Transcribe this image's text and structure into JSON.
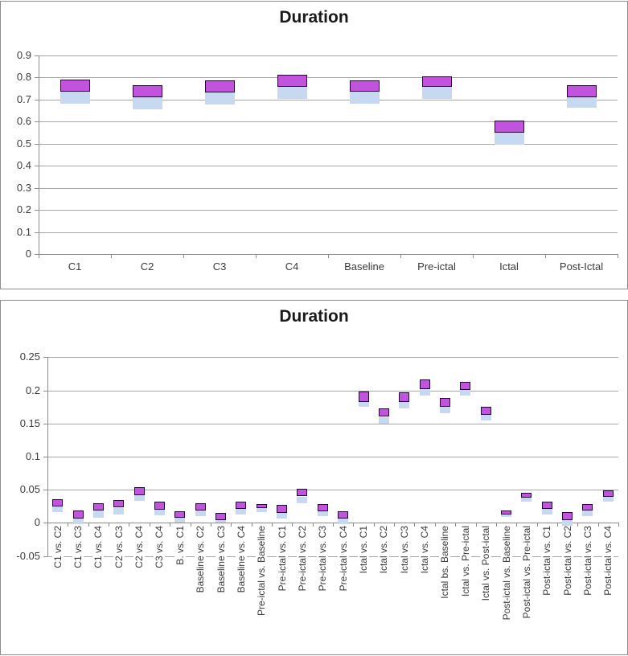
{
  "chart_data": [
    {
      "type": "bar",
      "subtype": "stacked-floating-range",
      "title": "Duration",
      "xlabel": "",
      "ylabel": "",
      "ylim": [
        0,
        0.9
      ],
      "yticks": [
        "0.9",
        "0.8",
        "0.7",
        "0.6",
        "0.5",
        "0.4",
        "0.3",
        "0.2",
        "0.1",
        "0"
      ],
      "grid": true,
      "legend": "none",
      "categories": [
        "C1",
        "C2",
        "C3",
        "C4",
        "Baseline",
        "Pre-ictal",
        "Ictal",
        "Post-Ictal"
      ],
      "series": [
        {
          "name": "lower-band",
          "color": "#C6D9F1",
          "ranges": [
            [
              0.68,
              0.735
            ],
            [
              0.655,
              0.71
            ],
            [
              0.675,
              0.73
            ],
            [
              0.7,
              0.755
            ],
            [
              0.68,
              0.735
            ],
            [
              0.7,
              0.755
            ],
            [
              0.495,
              0.55
            ],
            [
              0.66,
              0.71
            ]
          ]
        },
        {
          "name": "upper-band",
          "color": "#C153DC",
          "border_color": "#21073A",
          "ranges": [
            [
              0.735,
              0.79
            ],
            [
              0.71,
              0.765
            ],
            [
              0.73,
              0.785
            ],
            [
              0.755,
              0.81
            ],
            [
              0.735,
              0.785
            ],
            [
              0.755,
              0.805
            ],
            [
              0.55,
              0.605
            ],
            [
              0.71,
              0.765
            ]
          ]
        }
      ]
    },
    {
      "type": "bar",
      "subtype": "stacked-floating-range",
      "title": "Duration",
      "xlabel": "",
      "ylabel": "",
      "ylim": [
        -0.05,
        0.25
      ],
      "yticks": [
        "0.25",
        "0.2",
        "0.15",
        "0.1",
        "0.05",
        "0",
        "-0.05"
      ],
      "grid": true,
      "legend": "none",
      "categories": [
        "C1 vs. C2",
        "C1 vs. C3",
        "C1 vs. C4",
        "C2 vs. C3",
        "C2 vs. C4",
        "C3 vs. C4",
        "B. vs. C1",
        "Baseline vs. C2",
        "Baseline vs. C3",
        "Baseline vs. C4",
        "Pre-ictal vs. Baseline",
        "Pre-ictal vs. C1",
        "Pre-ictal vs. C2",
        "Pre-ictal vs. C3",
        "Pre-ictal vs. C4",
        "Ictal vs. C1",
        "Ictal vs. C2",
        "Ictal vs. C3",
        "Ictal vs. C4",
        "Ictal bs. Baseline",
        "Ictal vs. Pre-ictal",
        "Ictal vs. Post-ictal",
        "Post-ictal vs. Baseline",
        "Post-ictal vs. Pre-ictal",
        "Post-ictal vs. C1",
        "Post-ictal vs. C2",
        "Post-ictal vs. C3",
        "Post-ictal vs. C4"
      ],
      "series": [
        {
          "name": "lower-band",
          "color": "#C6D9F1",
          "ranges": [
            [
              0.016,
              0.025
            ],
            [
              -0.002,
              0.007
            ],
            [
              0.008,
              0.019
            ],
            [
              0.013,
              0.023
            ],
            [
              0.033,
              0.042
            ],
            [
              0.012,
              0.02
            ],
            [
              0.0,
              0.008
            ],
            [
              0.01,
              0.019
            ],
            [
              0.001,
              0.004
            ],
            [
              0.013,
              0.021
            ],
            [
              0.016,
              0.022
            ],
            [
              0.006,
              0.015
            ],
            [
              0.03,
              0.04
            ],
            [
              0.01,
              0.017
            ],
            [
              -0.002,
              0.007
            ],
            [
              0.175,
              0.183
            ],
            [
              0.15,
              0.16
            ],
            [
              0.173,
              0.183
            ],
            [
              0.192,
              0.202
            ],
            [
              0.166,
              0.175
            ],
            [
              0.192,
              0.201
            ],
            [
              0.154,
              0.163
            ],
            [
              0.009,
              0.013
            ],
            [
              0.032,
              0.038
            ],
            [
              0.013,
              0.021
            ],
            [
              -0.004,
              0.004
            ],
            [
              0.01,
              0.019
            ],
            [
              0.032,
              0.039
            ]
          ]
        },
        {
          "name": "upper-band",
          "color": "#C153DC",
          "border_color": "#21073A",
          "ranges": [
            [
              0.025,
              0.036
            ],
            [
              0.007,
              0.019
            ],
            [
              0.019,
              0.03
            ],
            [
              0.023,
              0.035
            ],
            [
              0.042,
              0.054
            ],
            [
              0.02,
              0.032
            ],
            [
              0.008,
              0.018
            ],
            [
              0.019,
              0.03
            ],
            [
              0.004,
              0.015
            ],
            [
              0.021,
              0.032
            ],
            [
              0.022,
              0.028
            ],
            [
              0.015,
              0.027
            ],
            [
              0.04,
              0.052
            ],
            [
              0.017,
              0.029
            ],
            [
              0.007,
              0.018
            ],
            [
              0.183,
              0.198
            ],
            [
              0.16,
              0.173
            ],
            [
              0.183,
              0.197
            ],
            [
              0.202,
              0.216
            ],
            [
              0.175,
              0.188
            ],
            [
              0.201,
              0.213
            ],
            [
              0.163,
              0.175
            ],
            [
              0.013,
              0.019
            ],
            [
              0.038,
              0.045
            ],
            [
              0.021,
              0.032
            ],
            [
              0.004,
              0.016
            ],
            [
              0.019,
              0.029
            ],
            [
              0.039,
              0.049
            ]
          ]
        }
      ]
    }
  ]
}
